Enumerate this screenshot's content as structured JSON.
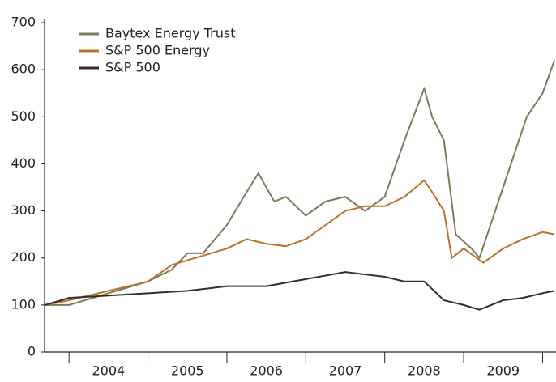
{
  "chart_data": {
    "type": "line",
    "categories": [
      "2004",
      "2005",
      "2006",
      "2007",
      "2008",
      "2009"
    ],
    "xlim": [
      2003.69,
      2010.17
    ],
    "xticks": [
      2004,
      2005,
      2006,
      2007,
      2008,
      2009,
      2010
    ],
    "ylim": [
      0,
      700
    ],
    "yticks": [
      0,
      100,
      200,
      300,
      400,
      500,
      600,
      700
    ],
    "legend": "upper left",
    "series": [
      {
        "name": "Baytex Energy Trust",
        "color": "#7b7b5c",
        "x": [
          2003.7,
          2004.0,
          2004.5,
          2005.0,
          2005.3,
          2005.5,
          2005.7,
          2006.0,
          2006.25,
          2006.4,
          2006.6,
          2006.75,
          2007.0,
          2007.25,
          2007.5,
          2007.75,
          2008.0,
          2008.25,
          2008.5,
          2008.6,
          2008.75,
          2008.9,
          2009.1,
          2009.2,
          2009.4,
          2009.6,
          2009.8,
          2010.0,
          2010.15
        ],
        "values": [
          100,
          100,
          125,
          150,
          175,
          210,
          210,
          270,
          340,
          380,
          320,
          330,
          290,
          320,
          330,
          300,
          330,
          450,
          560,
          500,
          450,
          250,
          220,
          200,
          300,
          400,
          500,
          550,
          620
        ]
      },
      {
        "name": "S&P 500 Energy",
        "color": "#b5762a",
        "x": [
          2003.7,
          2004.0,
          2004.5,
          2005.0,
          2005.3,
          2005.6,
          2005.8,
          2006.0,
          2006.25,
          2006.5,
          2006.75,
          2007.0,
          2007.25,
          2007.5,
          2007.75,
          2008.0,
          2008.25,
          2008.5,
          2008.6,
          2008.75,
          2008.85,
          2009.0,
          2009.25,
          2009.5,
          2009.75,
          2010.0,
          2010.15
        ],
        "values": [
          100,
          110,
          130,
          150,
          185,
          200,
          210,
          220,
          240,
          230,
          225,
          240,
          270,
          300,
          310,
          310,
          330,
          365,
          340,
          300,
          200,
          220,
          190,
          220,
          240,
          255,
          250
        ]
      },
      {
        "name": "S&P 500",
        "color": "#3b2a26",
        "x": [
          2003.7,
          2004.0,
          2004.5,
          2005.0,
          2005.5,
          2006.0,
          2006.5,
          2007.0,
          2007.5,
          2007.75,
          2008.0,
          2008.25,
          2008.5,
          2008.75,
          2009.0,
          2009.2,
          2009.5,
          2009.75,
          2010.0,
          2010.15
        ],
        "values": [
          100,
          115,
          120,
          125,
          130,
          140,
          140,
          155,
          170,
          165,
          160,
          150,
          150,
          110,
          100,
          90,
          110,
          115,
          125,
          130
        ]
      }
    ]
  }
}
